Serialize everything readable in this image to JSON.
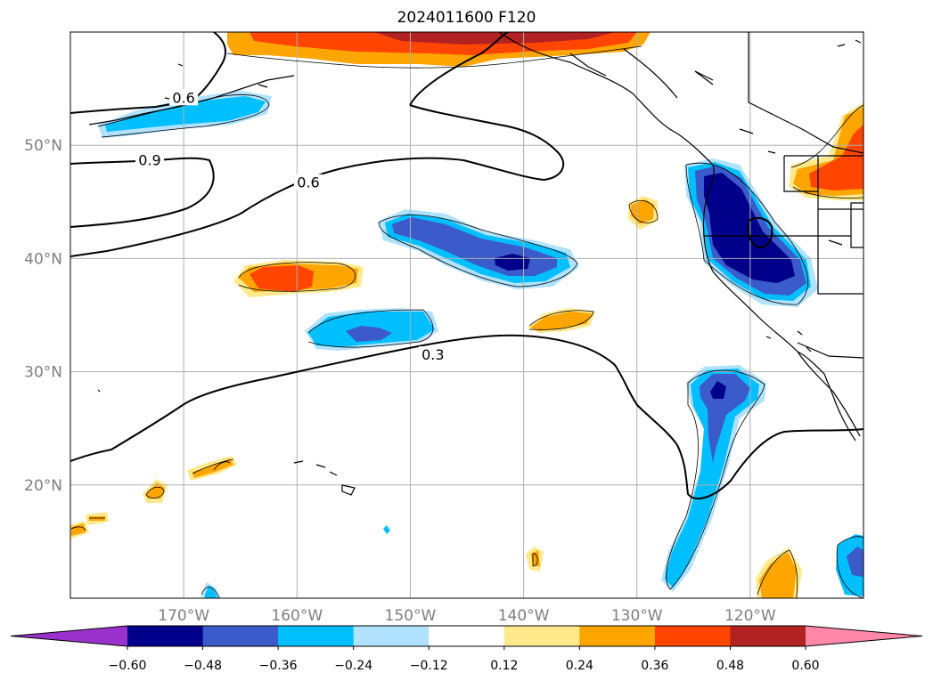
{
  "title": "2024011600 F120",
  "lat_ticks": [
    {
      "value": 50,
      "label": "50°N"
    },
    {
      "value": 40,
      "label": "40°N"
    },
    {
      "value": 30,
      "label": "30°N"
    },
    {
      "value": 20,
      "label": "20°N"
    }
  ],
  "lon_ticks": [
    {
      "value": -170,
      "label": "170°W"
    },
    {
      "value": -160,
      "label": "160°W"
    },
    {
      "value": -150,
      "label": "150°W"
    },
    {
      "value": -140,
      "label": "140°W"
    },
    {
      "value": -130,
      "label": "130°W"
    },
    {
      "value": -120,
      "label": "120°W"
    }
  ],
  "map_extent": {
    "lon_min": -180,
    "lon_max": -110,
    "lat_min": 10,
    "lat_max": 60
  },
  "colorbar": {
    "colors": [
      "#9932cc",
      "#00008b",
      "#3a5bc9",
      "#00bfff",
      "#b0e2ff",
      "#ffffff",
      "#ffe98a",
      "#ffa500",
      "#ff4500",
      "#b22222",
      "#ff88aa"
    ],
    "tick_labels": [
      "−0.60",
      "−0.48",
      "−0.36",
      "−0.24",
      "−0.12",
      "0.12",
      "0.24",
      "0.36",
      "0.48",
      "0.60"
    ]
  },
  "contour_labels": [
    {
      "text": "0.6",
      "lon": -170,
      "lat": 54
    },
    {
      "text": "0.9",
      "lon": -173,
      "lat": 48.5
    },
    {
      "text": "0.6",
      "lon": -159,
      "lat": 46.5
    },
    {
      "text": "0.3",
      "lon": -148,
      "lat": 31.3
    }
  ]
}
